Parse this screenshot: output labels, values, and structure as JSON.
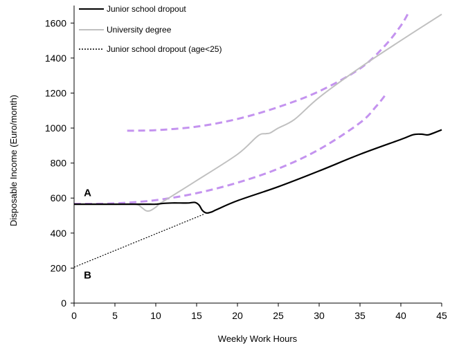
{
  "chart_data": {
    "type": "line",
    "title": "",
    "xlabel": "Weekly Work Hours",
    "ylabel": "Disposable Income (Euro/month)",
    "xlim": [
      0,
      45
    ],
    "ylim": [
      0,
      1700
    ],
    "x_ticks": [
      "0",
      "5",
      "10",
      "15",
      "20",
      "25",
      "30",
      "35",
      "40",
      "45"
    ],
    "y_ticks": [
      "0",
      "200",
      "400",
      "600",
      "800",
      "1000",
      "1200",
      "1400",
      "1600"
    ],
    "grid": false,
    "legend_position": "top-left",
    "series": [
      {
        "name": "Junior school dropout",
        "style": "solid",
        "color": "#000000",
        "points": [
          [
            0,
            565
          ],
          [
            5,
            565
          ],
          [
            8,
            565
          ],
          [
            9,
            565
          ],
          [
            10,
            565
          ],
          [
            11,
            570
          ],
          [
            12,
            572
          ],
          [
            13,
            572
          ],
          [
            14,
            572
          ],
          [
            14.8,
            575
          ],
          [
            15.3,
            560
          ],
          [
            15.7,
            530
          ],
          [
            16.2,
            515
          ],
          [
            16.8,
            520
          ],
          [
            17.5,
            535
          ],
          [
            20,
            585
          ],
          [
            25,
            665
          ],
          [
            30,
            755
          ],
          [
            35,
            850
          ],
          [
            40,
            935
          ],
          [
            41.5,
            962
          ],
          [
            42.5,
            965
          ],
          [
            43,
            962
          ],
          [
            43.5,
            963
          ],
          [
            45,
            990
          ]
        ]
      },
      {
        "name": "University degree",
        "style": "solid",
        "color": "#c0c0c0",
        "points": [
          [
            0,
            565
          ],
          [
            5,
            565
          ],
          [
            7.5,
            565
          ],
          [
            8.3,
            545
          ],
          [
            8.8,
            528
          ],
          [
            9.3,
            528
          ],
          [
            10,
            548
          ],
          [
            10.5,
            568
          ],
          [
            12,
            612
          ],
          [
            15,
            700
          ],
          [
            20,
            850
          ],
          [
            22.5,
            955
          ],
          [
            23.5,
            968
          ],
          [
            24,
            972
          ],
          [
            25,
            1000
          ],
          [
            27,
            1050
          ],
          [
            30,
            1175
          ],
          [
            35,
            1345
          ],
          [
            40,
            1500
          ],
          [
            45,
            1650
          ]
        ]
      },
      {
        "name": "Junior school dropout (age<25)",
        "style": "dotted",
        "color": "#000000",
        "points": [
          [
            0,
            205
          ],
          [
            16,
            510
          ]
        ]
      }
    ],
    "indifference_curves": [
      {
        "style": "dashed",
        "color": "#c493ef",
        "points": [
          [
            0,
            567
          ],
          [
            5,
            570
          ],
          [
            10,
            588
          ],
          [
            15,
            628
          ],
          [
            20,
            688
          ],
          [
            25,
            768
          ],
          [
            30,
            878
          ],
          [
            35,
            1030
          ],
          [
            37,
            1125
          ],
          [
            38.2,
            1195
          ]
        ]
      },
      {
        "style": "dashed",
        "color": "#c493ef",
        "points": [
          [
            6.5,
            985
          ],
          [
            10,
            988
          ],
          [
            15,
            1008
          ],
          [
            20,
            1052
          ],
          [
            25,
            1120
          ],
          [
            30,
            1210
          ],
          [
            35,
            1340
          ],
          [
            38,
            1468
          ],
          [
            40,
            1585
          ],
          [
            41,
            1665
          ]
        ]
      }
    ],
    "annotations": [
      {
        "text": "A",
        "x": 1.2,
        "y": 610
      },
      {
        "text": "B",
        "x": 1.2,
        "y": 140
      }
    ]
  }
}
